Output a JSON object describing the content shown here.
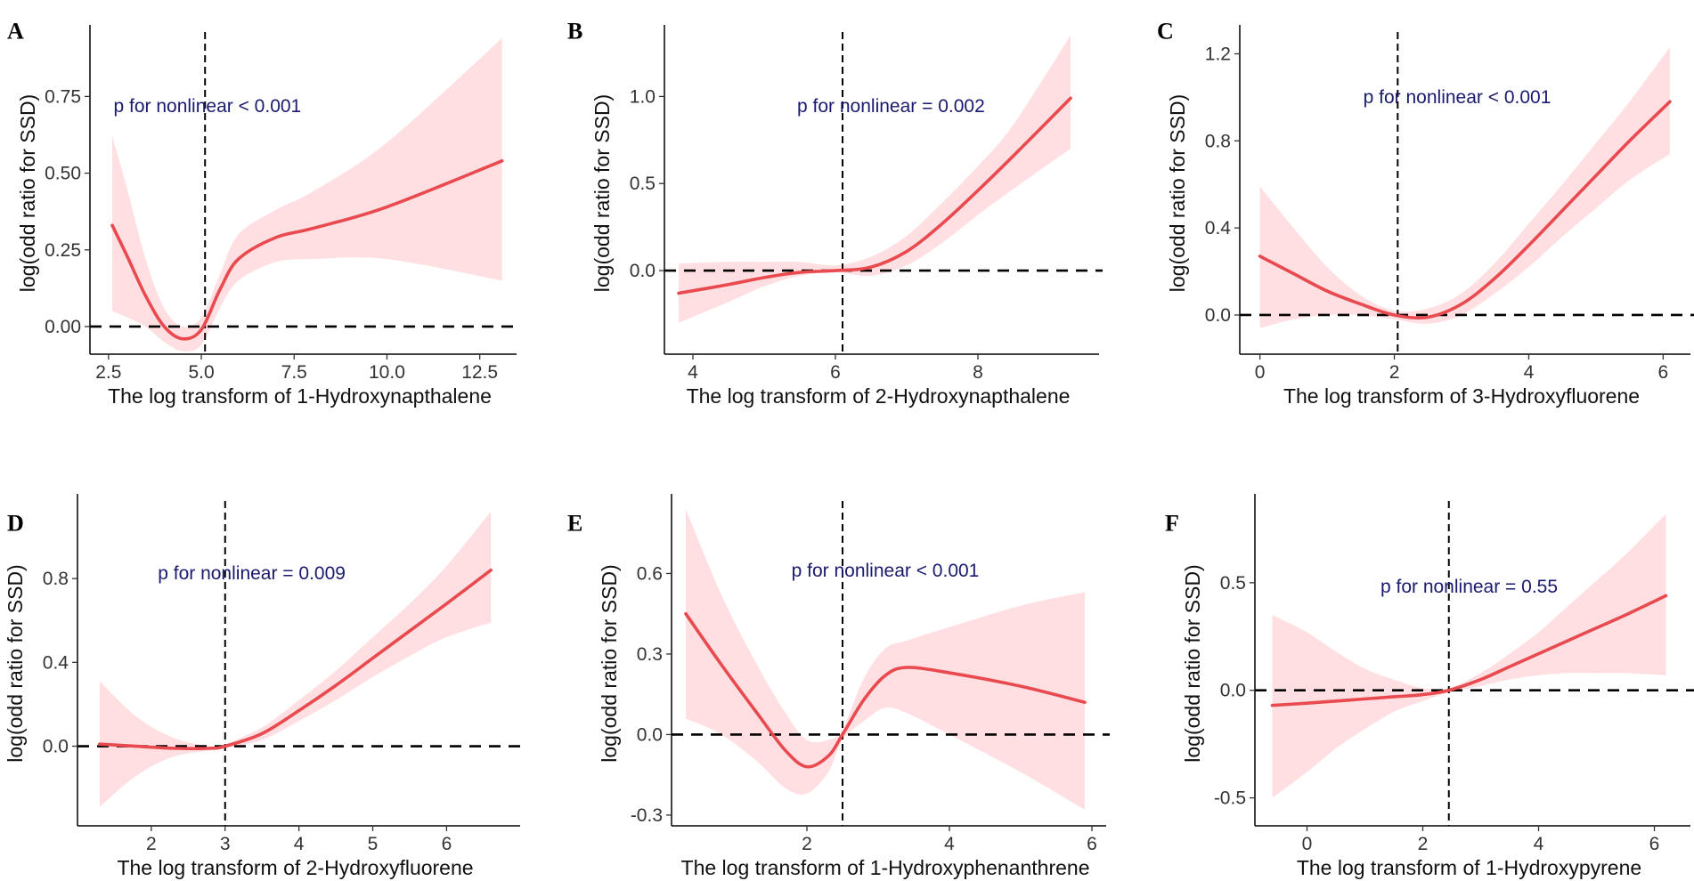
{
  "chart_data": [
    {
      "type": "line",
      "panel": "A",
      "xlabel": "The  log transform of 1-Hydroxynapthalene",
      "ylabel": "log(odd ratio for SSD)",
      "annotation": "p for nonlinear < 0.001",
      "xlim": [
        2.0,
        13.3
      ],
      "ylim": [
        -0.09,
        0.96
      ],
      "xticks": [
        2.5,
        5.0,
        7.5,
        10.0,
        12.5
      ],
      "xtick_labels": [
        "2.5",
        "5.0",
        "7.5",
        "10.0",
        "12.5"
      ],
      "yticks": [
        0.0,
        0.25,
        0.5,
        0.75
      ],
      "ytick_labels": [
        "0.00",
        "0.25",
        "0.50",
        "0.75"
      ],
      "ref_x": 5.1,
      "ref_y": 0,
      "x": [
        2.6,
        3.0,
        3.5,
        4.0,
        4.5,
        5.0,
        5.5,
        6.0,
        7.0,
        8.0,
        10.0,
        13.1
      ],
      "y": [
        0.33,
        0.23,
        0.1,
        0.0,
        -0.04,
        -0.01,
        0.12,
        0.22,
        0.29,
        0.32,
        0.39,
        0.54
      ],
      "lower": [
        0.05,
        0.03,
        0.0,
        -0.05,
        -0.08,
        -0.06,
        0.06,
        0.15,
        0.21,
        0.22,
        0.22,
        0.15
      ],
      "upper": [
        0.62,
        0.45,
        0.22,
        0.06,
        0.0,
        0.03,
        0.17,
        0.3,
        0.38,
        0.44,
        0.6,
        0.94
      ]
    },
    {
      "type": "line",
      "panel": "B",
      "xlabel": "The  log transform of 2-Hydroxynapthalene",
      "ylabel": "log(odd ratio for SSD)",
      "annotation": "p for nonlinear = 0.002",
      "xlim": [
        3.6,
        9.6
      ],
      "ylim": [
        -0.48,
        1.37
      ],
      "xticks": [
        4,
        6,
        8
      ],
      "xtick_labels": [
        "4",
        "6",
        "8"
      ],
      "yticks": [
        0.0,
        0.5,
        1.0
      ],
      "ytick_labels": [
        "0.0",
        "0.5",
        "1.0"
      ],
      "ref_x": 6.1,
      "ref_y": 0,
      "x": [
        3.8,
        4.5,
        5.0,
        5.5,
        6.0,
        6.5,
        7.0,
        7.5,
        8.0,
        8.5,
        9.3
      ],
      "y": [
        -0.13,
        -0.08,
        -0.04,
        -0.01,
        0.0,
        0.02,
        0.11,
        0.27,
        0.46,
        0.66,
        0.99
      ],
      "lower": [
        -0.3,
        -0.18,
        -0.09,
        -0.03,
        -0.01,
        -0.03,
        0.03,
        0.16,
        0.32,
        0.47,
        0.7
      ],
      "upper": [
        0.04,
        0.05,
        0.05,
        0.05,
        0.03,
        0.08,
        0.2,
        0.39,
        0.6,
        0.84,
        1.35
      ]
    },
    {
      "type": "line",
      "panel": "C",
      "xlabel": "The  log transform of 3-Hydroxyfluorene",
      "ylabel": "log(odd ratio for SSD)",
      "annotation": "p for nonlinear < 0.001",
      "xlim": [
        -0.3,
        6.3
      ],
      "ylim": [
        -0.18,
        1.3
      ],
      "xticks": [
        0,
        2,
        4,
        6
      ],
      "xtick_labels": [
        "0",
        "2",
        "4",
        "6"
      ],
      "yticks": [
        0.0,
        0.4,
        0.8,
        1.2
      ],
      "ytick_labels": [
        "0.0",
        "0.4",
        "0.8",
        "1.2"
      ],
      "ref_x": 2.05,
      "ref_y": 0,
      "x": [
        0.0,
        0.5,
        1.0,
        1.5,
        2.0,
        2.5,
        3.0,
        3.5,
        4.0,
        4.5,
        5.0,
        5.5,
        6.1
      ],
      "y": [
        0.27,
        0.19,
        0.11,
        0.05,
        0.0,
        -0.01,
        0.05,
        0.17,
        0.32,
        0.48,
        0.64,
        0.8,
        0.98
      ],
      "lower": [
        -0.06,
        -0.02,
        0.0,
        0.0,
        -0.02,
        -0.04,
        0.0,
        0.1,
        0.22,
        0.36,
        0.49,
        0.62,
        0.74
      ],
      "upper": [
        0.59,
        0.4,
        0.22,
        0.09,
        0.02,
        0.03,
        0.1,
        0.24,
        0.42,
        0.6,
        0.79,
        0.98,
        1.23
      ]
    },
    {
      "type": "line",
      "panel": "D",
      "xlabel": "The  log transform of 2-Hydroxyfluorene",
      "ylabel": "log(odd ratio for SSD)",
      "annotation": "p for nonlinear = 0.009",
      "xlim": [
        1.0,
        6.9
      ],
      "ylim": [
        -0.38,
        1.17
      ],
      "xticks": [
        2,
        3,
        4,
        5,
        6
      ],
      "xtick_labels": [
        "2",
        "3",
        "4",
        "5",
        "6"
      ],
      "yticks": [
        0.0,
        0.4,
        0.8
      ],
      "ytick_labels": [
        "0.0",
        "0.4",
        "0.8"
      ],
      "ref_x": 3.0,
      "ref_y": 0,
      "x": [
        1.3,
        1.8,
        2.3,
        2.8,
        3.0,
        3.5,
        4.0,
        4.5,
        5.0,
        5.5,
        6.0,
        6.6
      ],
      "y": [
        0.01,
        0.0,
        -0.01,
        -0.01,
        0.0,
        0.06,
        0.17,
        0.29,
        0.42,
        0.55,
        0.68,
        0.84
      ],
      "lower": [
        -0.29,
        -0.14,
        -0.05,
        -0.02,
        -0.01,
        0.03,
        0.12,
        0.22,
        0.33,
        0.43,
        0.52,
        0.59
      ],
      "upper": [
        0.31,
        0.14,
        0.04,
        0.0,
        0.01,
        0.09,
        0.22,
        0.36,
        0.52,
        0.68,
        0.86,
        1.12
      ]
    },
    {
      "type": "line",
      "panel": "E",
      "xlabel": "The  log transform of 1-Hydroxyphenanthrene",
      "ylabel": "log(odd ratio for SSD)",
      "annotation": "p for nonlinear < 0.001",
      "xlim": [
        0.1,
        6.1
      ],
      "ylim": [
        -0.34,
        0.87
      ],
      "xticks": [
        2,
        4,
        6
      ],
      "xtick_labels": [
        "2",
        "4",
        "6"
      ],
      "yticks": [
        -0.3,
        0.0,
        0.3,
        0.6
      ],
      "ytick_labels": [
        "-0.3",
        "0.0",
        "0.3",
        "0.6"
      ],
      "ref_x": 2.5,
      "ref_y": 0,
      "x": [
        0.3,
        0.8,
        1.3,
        1.7,
        2.0,
        2.3,
        2.5,
        2.8,
        3.1,
        3.4,
        4.0,
        5.0,
        5.9
      ],
      "y": [
        0.45,
        0.26,
        0.08,
        -0.06,
        -0.12,
        -0.08,
        0.0,
        0.13,
        0.22,
        0.25,
        0.23,
        0.18,
        0.12
      ],
      "lower": [
        0.06,
        0.0,
        -0.1,
        -0.2,
        -0.22,
        -0.14,
        -0.02,
        0.05,
        0.1,
        0.08,
        0.0,
        -0.14,
        -0.28
      ],
      "upper": [
        0.84,
        0.52,
        0.26,
        0.08,
        -0.02,
        -0.02,
        0.02,
        0.21,
        0.32,
        0.35,
        0.4,
        0.48,
        0.53
      ]
    },
    {
      "type": "line",
      "panel": "F",
      "xlabel": "The  log transform of 1-Hydroxypyrene",
      "ylabel": "log(odd ratio for SSD)",
      "annotation": "p for nonlinear = 0.55",
      "xlim": [
        -0.9,
        6.5
      ],
      "ylim": [
        -0.63,
        0.88
      ],
      "xticks": [
        0,
        2,
        4,
        6
      ],
      "xtick_labels": [
        "0",
        "2",
        "4",
        "6"
      ],
      "yticks": [
        -0.5,
        0.0,
        0.5
      ],
      "ytick_labels": [
        "-0.5",
        "0.0",
        "0.5"
      ],
      "ref_x": 2.45,
      "ref_y": 0,
      "x": [
        -0.6,
        0.0,
        0.5,
        1.0,
        1.5,
        2.0,
        2.45,
        3.0,
        3.5,
        4.0,
        4.5,
        5.0,
        5.5,
        6.2
      ],
      "y": [
        -0.07,
        -0.06,
        -0.05,
        -0.04,
        -0.03,
        -0.02,
        0.0,
        0.05,
        0.11,
        0.17,
        0.23,
        0.29,
        0.35,
        0.44
      ],
      "lower": [
        -0.5,
        -0.38,
        -0.27,
        -0.18,
        -0.1,
        -0.05,
        -0.01,
        0.02,
        0.05,
        0.07,
        0.08,
        0.08,
        0.08,
        0.07
      ],
      "upper": [
        0.35,
        0.27,
        0.18,
        0.1,
        0.05,
        0.01,
        0.01,
        0.08,
        0.17,
        0.27,
        0.39,
        0.51,
        0.63,
        0.82
      ]
    }
  ]
}
